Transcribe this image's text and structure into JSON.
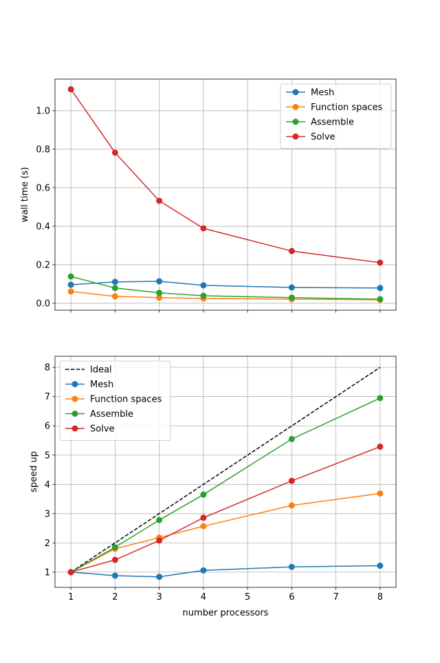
{
  "chart_data": [
    {
      "type": "line",
      "title": "",
      "xlabel": "",
      "ylabel": "wall time (s)",
      "x": [
        1,
        2,
        3,
        4,
        6,
        8
      ],
      "xlim": [
        0.64,
        8.36
      ],
      "ylim": [
        -0.036,
        1.164
      ],
      "xticks": [
        1,
        2,
        3,
        4,
        5,
        6,
        7,
        8
      ],
      "xtick_labels_visible": false,
      "yticks": [
        0.0,
        0.2,
        0.4,
        0.6,
        0.8,
        1.0
      ],
      "ytick_labels": [
        "0.0",
        "0.2",
        "0.4",
        "0.6",
        "0.8",
        "1.0"
      ],
      "grid": true,
      "legend_position": "top-right",
      "series": [
        {
          "name": "Mesh",
          "color": "#1f77b4",
          "marker": "circle",
          "values": [
            0.096,
            0.111,
            0.114,
            0.093,
            0.082,
            0.079
          ]
        },
        {
          "name": "Function spaces",
          "color": "#ff7f0e",
          "marker": "circle",
          "values": [
            0.061,
            0.036,
            0.029,
            0.025,
            0.021,
            0.018
          ]
        },
        {
          "name": "Assemble",
          "color": "#2ca02c",
          "marker": "circle",
          "values": [
            0.139,
            0.079,
            0.054,
            0.039,
            0.029,
            0.021
          ]
        },
        {
          "name": "Solve",
          "color": "#d62728",
          "marker": "circle",
          "values": [
            1.111,
            0.782,
            0.532,
            0.389,
            0.271,
            0.211
          ]
        }
      ]
    },
    {
      "type": "line",
      "title": "",
      "xlabel": "number processors",
      "ylabel": "speed up",
      "x": [
        1,
        2,
        3,
        4,
        6,
        8
      ],
      "xlim": [
        0.64,
        8.36
      ],
      "ylim": [
        0.48,
        8.38
      ],
      "xticks": [
        1,
        2,
        3,
        4,
        5,
        6,
        7,
        8
      ],
      "xtick_labels": [
        "1",
        "2",
        "3",
        "4",
        "5",
        "6",
        "7",
        "8"
      ],
      "yticks": [
        1,
        2,
        3,
        4,
        5,
        6,
        7,
        8
      ],
      "ytick_labels": [
        "1",
        "2",
        "3",
        "4",
        "5",
        "6",
        "7",
        "8"
      ],
      "grid": true,
      "legend_position": "top-left",
      "series": [
        {
          "name": "Ideal",
          "color": "#000000",
          "style": "dashed",
          "x": [
            1,
            8
          ],
          "values": [
            1,
            8
          ]
        },
        {
          "name": "Mesh",
          "color": "#1f77b4",
          "marker": "circle",
          "values": [
            1.0,
            0.88,
            0.84,
            1.06,
            1.18,
            1.22
          ]
        },
        {
          "name": "Function spaces",
          "color": "#ff7f0e",
          "marker": "circle",
          "values": [
            1.0,
            1.8,
            2.18,
            2.57,
            3.28,
            3.69
          ]
        },
        {
          "name": "Assemble",
          "color": "#2ca02c",
          "marker": "circle",
          "values": [
            1.0,
            1.85,
            2.78,
            3.65,
            5.55,
            6.95
          ]
        },
        {
          "name": "Solve",
          "color": "#d62728",
          "marker": "circle",
          "values": [
            1.0,
            1.42,
            2.08,
            2.86,
            4.12,
            5.29
          ]
        }
      ]
    }
  ]
}
